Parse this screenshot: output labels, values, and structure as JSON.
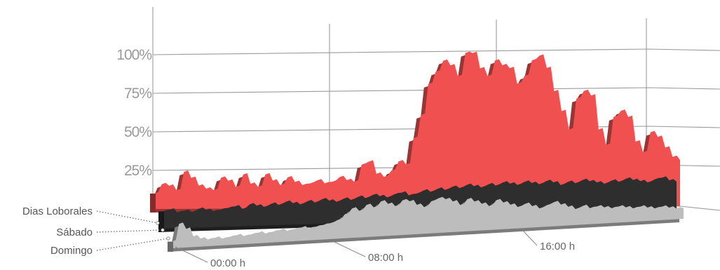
{
  "chart_data": {
    "type": "area",
    "title": "",
    "xlabel": "",
    "ylabel": "",
    "ylim": [
      0,
      110
    ],
    "y_ticks": [
      "25%",
      "50%",
      "75%",
      "100%"
    ],
    "x_tick_labels": [
      "00:00 h",
      "08:00 h",
      "16:00 h"
    ],
    "legend_position": "left",
    "grid": true,
    "series": [
      {
        "name": "Dias Loborales",
        "color": "#f05050",
        "values": [
          10,
          16,
          15,
          12,
          24,
          20,
          15,
          13,
          12,
          20,
          18,
          14,
          22,
          16,
          14,
          22,
          18,
          15,
          20,
          17,
          15,
          16,
          18,
          16,
          17,
          20,
          18,
          17,
          28,
          30,
          22,
          20,
          24,
          30,
          28,
          45,
          60,
          80,
          88,
          95,
          92,
          85,
          100,
          100,
          90,
          85,
          95,
          92,
          90,
          80,
          85,
          95,
          98,
          90,
          75,
          62,
          50,
          70,
          75,
          72,
          50,
          40,
          58,
          62,
          58,
          42,
          35,
          48,
          45,
          38,
          32,
          30
        ]
      },
      {
        "name": "Sábado",
        "color": "#2e2e2e",
        "values": [
          12,
          13,
          11,
          12,
          11,
          13,
          12,
          11,
          12,
          13,
          14,
          12,
          15,
          14,
          13,
          15,
          14,
          16,
          15,
          14,
          16,
          15,
          17,
          16,
          15,
          17,
          16,
          18,
          17,
          19,
          18,
          17,
          19,
          20,
          18,
          19,
          21,
          20,
          22,
          21,
          23,
          22,
          24,
          23,
          22,
          24,
          23,
          25,
          24,
          23,
          25,
          24,
          23,
          25,
          24,
          22,
          24,
          23,
          25,
          24,
          23,
          22,
          24,
          23,
          25,
          24,
          23,
          22,
          24,
          25,
          23,
          22
        ]
      },
      {
        "name": "Domingo",
        "color": "#bdbdbd",
        "values": [
          5,
          18,
          14,
          8,
          6,
          5,
          6,
          5,
          6,
          7,
          6,
          7,
          8,
          7,
          8,
          9,
          8,
          9,
          10,
          9,
          10,
          11,
          12,
          14,
          18,
          22,
          20,
          24,
          22,
          26,
          24,
          22,
          26,
          25,
          22,
          20,
          24,
          26,
          25,
          23,
          20,
          24,
          22,
          20,
          18,
          22,
          20,
          18,
          16,
          18,
          16,
          14,
          16,
          18,
          16,
          14,
          12,
          14,
          12,
          13,
          12,
          11,
          12,
          11,
          10,
          11,
          10,
          9,
          10,
          9,
          8,
          8
        ]
      }
    ]
  }
}
